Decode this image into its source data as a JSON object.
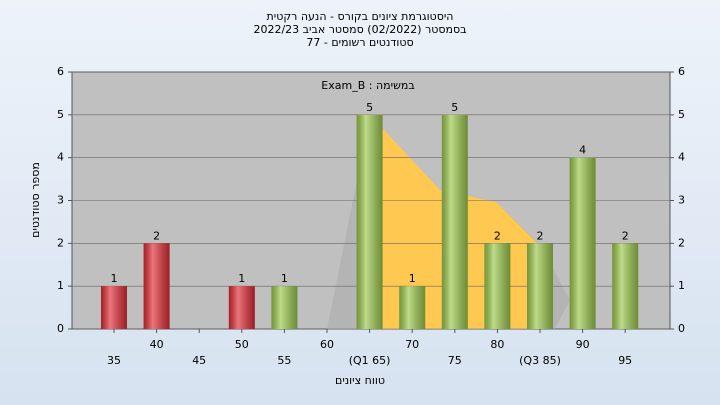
{
  "chart_data": {
    "type": "bar",
    "title": "היסטוגרמת ציונים בקורס - הנעה רקטית",
    "subtitle": "בסמסטר  (02/2022)  סמסטר אביב 2022/23",
    "subtitle2": "סטודנטים רשומים - 77",
    "annotation": "Exam_B : במשימה",
    "y_label": "מספר סטודנטים",
    "x_label": "טווח ציונים",
    "categories": [
      "35",
      "40",
      "45",
      "50",
      "55",
      "60",
      "(Q1 65)",
      "70",
      "75",
      "80",
      "(Q3 85)",
      "90",
      "95"
    ],
    "values": [
      1,
      2,
      0,
      1,
      1,
      0,
      5,
      1,
      5,
      2,
      2,
      4,
      2
    ],
    "colors": [
      "#e02c34",
      "#e02c34",
      "#e02c34",
      "#e02c34",
      "#9cc84c",
      "#9cc84c",
      "#9cc84c",
      "#9cc84c",
      "#9cc84c",
      "#9cc84c",
      "#9cc84c",
      "#9cc84c",
      "#9cc84c"
    ],
    "ylim": [
      0,
      6
    ],
    "yticks": [
      0,
      1,
      2,
      3,
      4,
      5,
      6
    ],
    "y2lim": [
      0,
      6
    ],
    "y2ticks": [
      0,
      1,
      2,
      3,
      4,
      5,
      6
    ],
    "grid": true
  }
}
